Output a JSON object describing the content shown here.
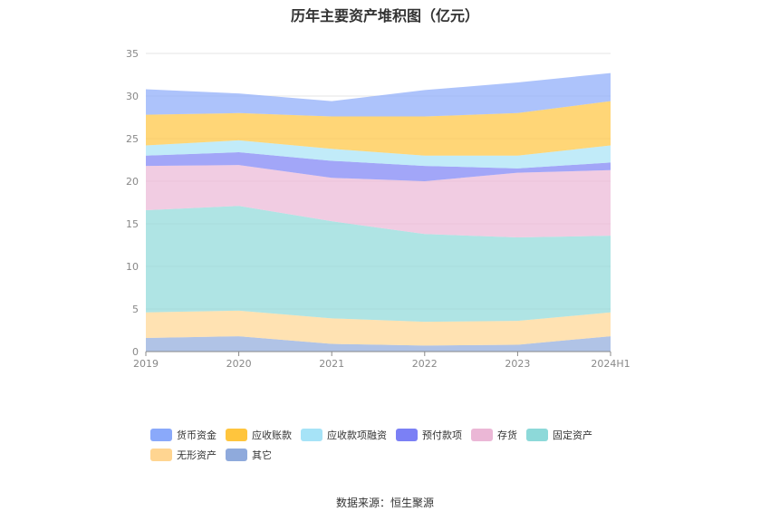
{
  "chart_data": {
    "type": "area",
    "stacked": true,
    "title": "历年主要资产堆积图（亿元）",
    "categories": [
      "2019",
      "2020",
      "2021",
      "2022",
      "2023",
      "2024H1"
    ],
    "ylim": [
      0,
      35
    ],
    "yticks": [
      "0",
      "5",
      "10",
      "15",
      "20",
      "25",
      "30",
      "35"
    ],
    "grid": true,
    "legend_position": "bottom",
    "series": [
      {
        "name": "其它",
        "color": "#8faadc",
        "values": [
          1.6,
          1.8,
          0.9,
          0.7,
          0.8,
          1.8
        ]
      },
      {
        "name": "无形资产",
        "color": "#ffd591",
        "values": [
          3.0,
          3.0,
          3.0,
          2.8,
          2.8,
          2.8
        ]
      },
      {
        "name": "固定资产",
        "color": "#8dd9d9",
        "values": [
          12.0,
          12.3,
          11.4,
          10.3,
          9.8,
          9.0
        ]
      },
      {
        "name": "存货",
        "color": "#ebb7d6",
        "values": [
          5.2,
          4.8,
          5.1,
          6.2,
          7.6,
          7.7
        ]
      },
      {
        "name": "预付款项",
        "color": "#7b80f5",
        "values": [
          1.2,
          1.5,
          2.0,
          1.8,
          0.5,
          0.9
        ]
      },
      {
        "name": "应收款项融资",
        "color": "#a6e3f7",
        "values": [
          1.2,
          1.4,
          1.4,
          1.2,
          1.5,
          2.0
        ]
      },
      {
        "name": "应收账款",
        "color": "#ffc53d",
        "values": [
          3.6,
          3.2,
          3.8,
          4.6,
          5.0,
          5.2
        ]
      },
      {
        "name": "货币资金",
        "color": "#8aa9fa",
        "values": [
          3.0,
          2.3,
          1.8,
          3.1,
          3.6,
          3.3
        ]
      }
    ],
    "legend_order": [
      "货币资金",
      "应收账款",
      "应收款项融资",
      "预付款项",
      "存货",
      "固定资产",
      "无形资产",
      "其它"
    ]
  },
  "source_text": "数据来源：恒生聚源"
}
